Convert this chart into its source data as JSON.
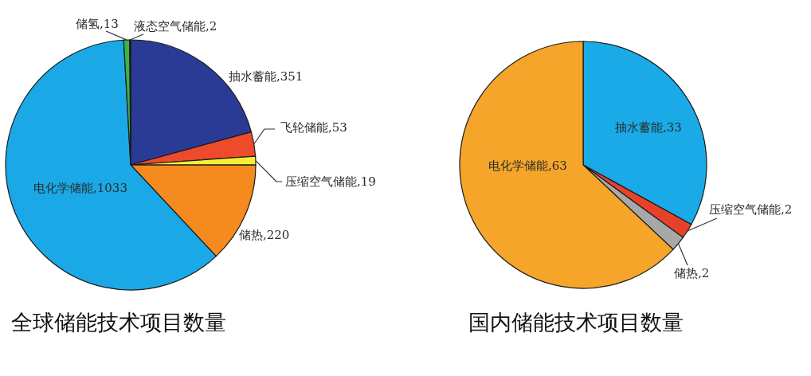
{
  "chart_data": [
    {
      "type": "pie",
      "title": "全球储能技术项目数量",
      "categories": [
        "抽水蓄能",
        "飞轮储能",
        "压缩空气储能",
        "储热",
        "电化学储能",
        "储氢",
        "液态空气储能"
      ],
      "values": [
        351,
        53,
        19,
        220,
        1033,
        13,
        2
      ],
      "value_labels": [
        ",351",
        ",53",
        ",19",
        ",220",
        ",1033",
        ",13",
        ",2"
      ],
      "colors": [
        "#2a3b96",
        "#ee4a2c",
        "#f7ee3a",
        "#f58a1f",
        "#1aa9e6",
        "#3bb44a",
        "#2b2b2b"
      ]
    },
    {
      "type": "pie",
      "title": "国内储能技术项目数量",
      "categories": [
        "抽水蓄能",
        "压缩空气储能",
        "储热",
        "电化学储能"
      ],
      "values": [
        33,
        2,
        2,
        63
      ],
      "value_labels": [
        ",33",
        ",2",
        ",2",
        ",63"
      ],
      "colors": [
        "#1aaae8",
        "#e8412b",
        "#a8a8a8",
        "#f5a52a"
      ]
    }
  ]
}
